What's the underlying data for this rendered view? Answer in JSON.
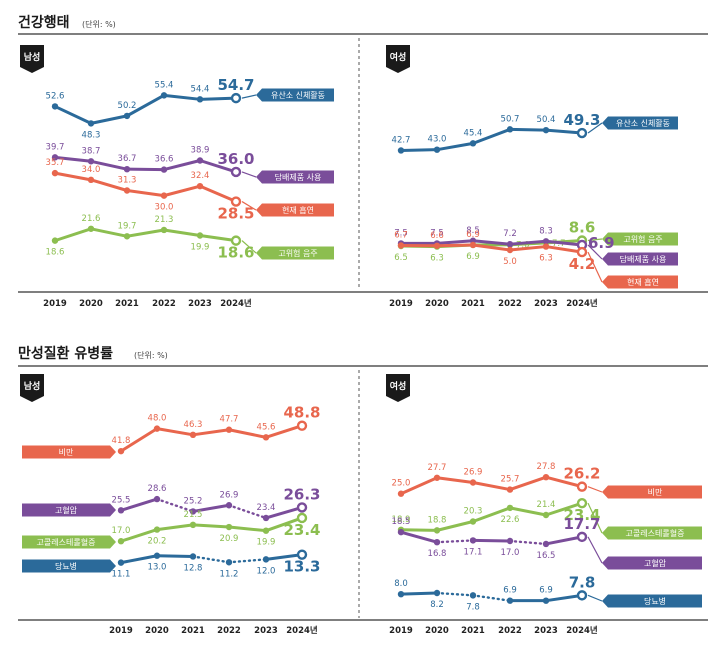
{
  "sections": [
    {
      "title": "건강행태",
      "unit": "(단위: %)"
    },
    {
      "title": "만성질환 유병률",
      "unit": "(단위: %)"
    }
  ],
  "panel_labels": {
    "male": "남성",
    "female": "여성"
  },
  "x_labels": [
    "2019",
    "2020",
    "2021",
    "2022",
    "2023",
    "2024년"
  ],
  "colors": {
    "blue": "#2b6a9a",
    "purple": "#7a4d9a",
    "red": "#e8664d",
    "green": "#8cbe50",
    "dark": "#1a1a1a"
  },
  "chart_data": [
    {
      "type": "line",
      "section": "건강행태",
      "panel": "남성",
      "categories": [
        "2019",
        "2020",
        "2021",
        "2022",
        "2023",
        "2024년"
      ],
      "series": [
        {
          "name": "유산소 신체활동",
          "color": "#2b6a9a",
          "values": [
            52.6,
            48.3,
            50.2,
            55.4,
            54.4,
            54.7
          ]
        },
        {
          "name": "담배제품 사용",
          "color": "#7a4d9a",
          "values": [
            39.7,
            38.7,
            36.7,
            36.6,
            38.9,
            36.0
          ]
        },
        {
          "name": "현재 흡연",
          "color": "#e8664d",
          "values": [
            35.7,
            34.0,
            31.3,
            30.0,
            32.4,
            28.5
          ]
        },
        {
          "name": "고위험 음주",
          "color": "#8cbe50",
          "values": [
            18.6,
            21.6,
            19.7,
            21.3,
            19.9,
            18.6
          ]
        }
      ]
    },
    {
      "type": "line",
      "section": "건강행태",
      "panel": "여성",
      "categories": [
        "2019",
        "2020",
        "2021",
        "2022",
        "2023",
        "2024년"
      ],
      "series": [
        {
          "name": "유산소 신체활동",
          "color": "#2b6a9a",
          "values": [
            42.7,
            43.0,
            45.4,
            50.7,
            50.4,
            49.3
          ]
        },
        {
          "name": "고위험 음주",
          "color": "#8cbe50",
          "values": [
            6.5,
            6.3,
            6.9,
            7.0,
            7.7,
            8.6
          ]
        },
        {
          "name": "담배제품 사용",
          "color": "#7a4d9a",
          "values": [
            7.5,
            7.5,
            8.5,
            7.2,
            8.3,
            6.9
          ]
        },
        {
          "name": "현재 흡연",
          "color": "#e8664d",
          "values": [
            6.7,
            6.6,
            6.9,
            5.0,
            6.3,
            4.2
          ]
        }
      ]
    },
    {
      "type": "line",
      "section": "만성질환 유병률",
      "panel": "남성",
      "categories": [
        "2019",
        "2020",
        "2021",
        "2022",
        "2023",
        "2024년"
      ],
      "series": [
        {
          "name": "비만",
          "color": "#e8664d",
          "values": [
            41.8,
            48.0,
            46.3,
            47.7,
            45.6,
            48.8
          ]
        },
        {
          "name": "고혈압",
          "color": "#7a4d9a",
          "values": [
            25.5,
            28.6,
            25.2,
            26.9,
            23.4,
            26.3
          ]
        },
        {
          "name": "고콜레스테롤혈증",
          "color": "#8cbe50",
          "values": [
            17.0,
            20.2,
            21.5,
            20.9,
            19.9,
            23.4
          ]
        },
        {
          "name": "당뇨병",
          "color": "#2b6a9a",
          "values": [
            11.1,
            13.0,
            12.8,
            11.2,
            12.0,
            13.3
          ]
        }
      ]
    },
    {
      "type": "line",
      "section": "만성질환 유병률",
      "panel": "여성",
      "categories": [
        "2019",
        "2020",
        "2021",
        "2022",
        "2023",
        "2024년"
      ],
      "series": [
        {
          "name": "비만",
          "color": "#e8664d",
          "values": [
            25.0,
            27.7,
            26.9,
            25.7,
            27.8,
            26.2
          ]
        },
        {
          "name": "고콜레스테롤혈증",
          "color": "#8cbe50",
          "values": [
            18.9,
            18.8,
            20.3,
            22.6,
            21.4,
            23.4
          ]
        },
        {
          "name": "고혈압",
          "color": "#7a4d9a",
          "values": [
            18.5,
            16.8,
            17.1,
            17.0,
            16.5,
            17.7
          ]
        },
        {
          "name": "당뇨병",
          "color": "#2b6a9a",
          "values": [
            8.0,
            8.2,
            7.8,
            6.9,
            6.9,
            7.8
          ]
        }
      ]
    }
  ]
}
